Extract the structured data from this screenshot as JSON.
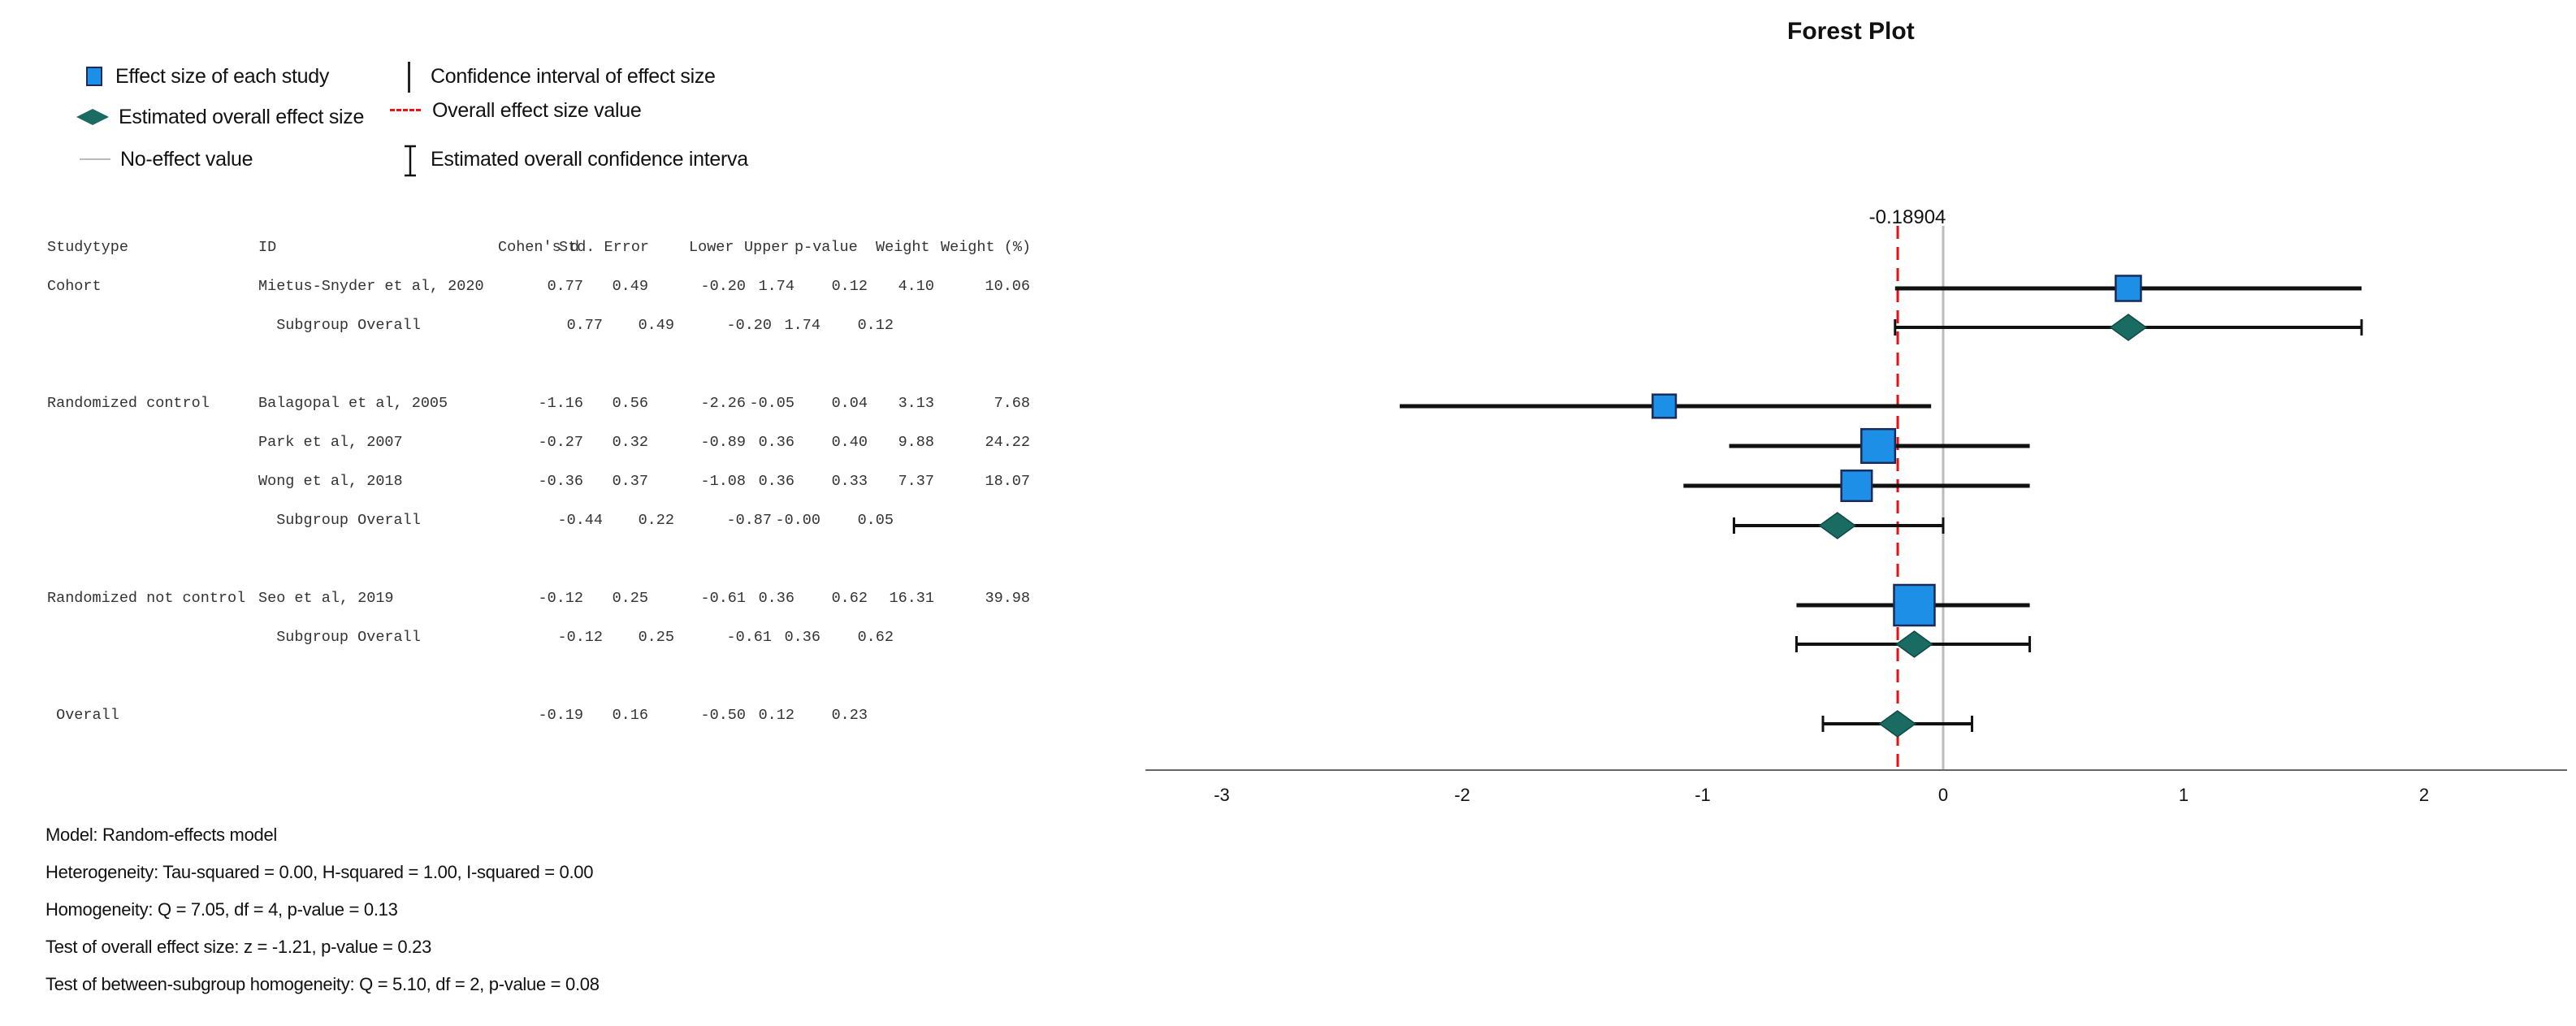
{
  "legend": {
    "effect_size_each_study": "Effect size of each study",
    "estimated_overall_effect": "Estimated overall effect size",
    "no_effect_value": "No-effect value",
    "ci_each_study": "Confidence interval of effect size",
    "overall_effect_value": "Overall effect size value",
    "estimated_overall_ci": "Estimated overall confidence interva"
  },
  "table": {
    "headers": [
      "Studytype",
      "ID",
      "Cohen's d",
      "Std. Error",
      "Lower",
      "Upper",
      "p-value",
      "Weight",
      "Weight (%)"
    ],
    "rows": [
      {
        "studytype": "Cohort",
        "id": "Mietus-Snyder et al, 2020",
        "d": "0.77",
        "se": "0.49",
        "lower": "-0.20",
        "upper": "1.74",
        "p": "0.12",
        "weight": "4.10",
        "weight_pct": "10.06"
      },
      {
        "studytype": "",
        "id": "  Subgroup Overall",
        "d": "0.77",
        "se": "0.49",
        "lower": "-0.20",
        "upper": "1.74",
        "p": "0.12",
        "weight": "",
        "weight_pct": ""
      },
      {
        "studytype": "Randomized control",
        "id": "Balagopal et al, 2005",
        "d": "-1.16",
        "se": "0.56",
        "lower": "-2.26",
        "upper": "-0.05",
        "p": "0.04",
        "weight": "3.13",
        "weight_pct": "7.68"
      },
      {
        "studytype": "",
        "id": "Park et al, 2007",
        "d": "-0.27",
        "se": "0.32",
        "lower": "-0.89",
        "upper": "0.36",
        "p": "0.40",
        "weight": "9.88",
        "weight_pct": "24.22"
      },
      {
        "studytype": "",
        "id": "Wong et al, 2018",
        "d": "-0.36",
        "se": "0.37",
        "lower": "-1.08",
        "upper": "0.36",
        "p": "0.33",
        "weight": "7.37",
        "weight_pct": "18.07"
      },
      {
        "studytype": "",
        "id": "  Subgroup Overall",
        "d": "-0.44",
        "se": "0.22",
        "lower": "-0.87",
        "upper": "-0.00",
        "p": "0.05",
        "weight": "",
        "weight_pct": ""
      },
      {
        "studytype": "Randomized not control",
        "id": "Seo et al, 2019",
        "d": "-0.12",
        "se": "0.25",
        "lower": "-0.61",
        "upper": "0.36",
        "p": "0.62",
        "weight": "16.31",
        "weight_pct": "39.98"
      },
      {
        "studytype": "",
        "id": "  Subgroup Overall",
        "d": "-0.12",
        "se": "0.25",
        "lower": "-0.61",
        "upper": "0.36",
        "p": "0.62",
        "weight": "",
        "weight_pct": ""
      },
      {
        "studytype": " Overall",
        "id": "",
        "d": "-0.19",
        "se": "0.16",
        "lower": "-0.50",
        "upper": "0.12",
        "p": "0.23",
        "weight": "",
        "weight_pct": ""
      }
    ]
  },
  "stats": {
    "model": "Model: Random-effects model",
    "heterogeneity": "Heterogeneity: Tau-squared = 0.00, H-squared = 1.00, I-squared = 0.00",
    "homogeneity": "Homogeneity: Q = 7.05, df = 4, p-value = 0.13",
    "overall_test": "Test of overall effect size: z = -1.21, p-value = 0.23",
    "between_subgroup": "Test of between-subgroup homogeneity: Q = 5.10, df = 2, p-value = 0.08"
  },
  "chart_data": {
    "type": "forest",
    "title": "Forest Plot",
    "xlim": [
      -3.3,
      2.6
    ],
    "xticks": [
      -3,
      -2,
      -1,
      0,
      1,
      2
    ],
    "no_effect_value": 0,
    "overall_effect_value": -0.18904,
    "overall_effect_label": "-0.18904",
    "rows": [
      {
        "label": "Mietus-Snyder et al, 2020",
        "kind": "study",
        "estimate": 0.77,
        "lower": -0.2,
        "upper": 1.74,
        "weight_pct": 10.06
      },
      {
        "label": "Subgroup Overall (Cohort)",
        "kind": "subgroup",
        "estimate": 0.77,
        "lower": -0.2,
        "upper": 1.74
      },
      {
        "label": "Balagopal et al, 2005",
        "kind": "study",
        "estimate": -1.16,
        "lower": -2.26,
        "upper": -0.05,
        "weight_pct": 7.68
      },
      {
        "label": "Park et al, 2007",
        "kind": "study",
        "estimate": -0.27,
        "lower": -0.89,
        "upper": 0.36,
        "weight_pct": 24.22
      },
      {
        "label": "Wong et al, 2018",
        "kind": "study",
        "estimate": -0.36,
        "lower": -1.08,
        "upper": 0.36,
        "weight_pct": 18.07
      },
      {
        "label": "Subgroup Overall (Randomized control)",
        "kind": "subgroup",
        "estimate": -0.44,
        "lower": -0.87,
        "upper": -0.0
      },
      {
        "label": "Seo et al, 2019",
        "kind": "study",
        "estimate": -0.12,
        "lower": -0.61,
        "upper": 0.36,
        "weight_pct": 39.98
      },
      {
        "label": "Subgroup Overall (Randomized not control)",
        "kind": "subgroup",
        "estimate": -0.12,
        "lower": -0.61,
        "upper": 0.36
      },
      {
        "label": "Overall",
        "kind": "overall",
        "estimate": -0.19,
        "lower": -0.5,
        "upper": 0.12
      }
    ],
    "colors": {
      "study": "#1e8fe6",
      "diamond": "#1a6b62",
      "overall_line": "#e11111",
      "no_effect_line": "#bbbbbb",
      "ci": "#111111"
    }
  }
}
